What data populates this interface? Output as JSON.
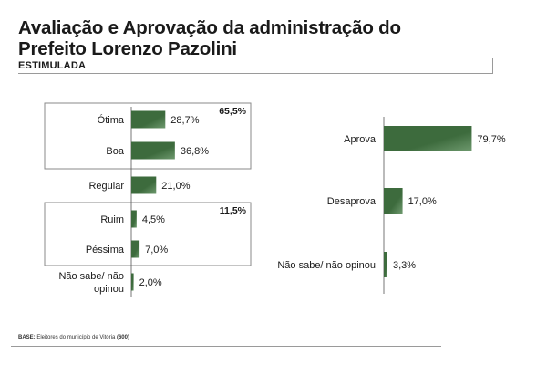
{
  "header": {
    "title": "Avaliação e Aprovação da administração do Prefeito Lorenzo Pazolini",
    "subtitle": "ESTIMULADA"
  },
  "footer": {
    "base_label": "BASE:",
    "base_text": "Eleitores do município de Vitória",
    "base_count": "(600)"
  },
  "colors": {
    "bar": "#3d6b3d",
    "bar_light": "#6f9a6f",
    "box_border": "#8a8a8a",
    "axis": "#555555"
  },
  "chart_data": [
    {
      "type": "bar",
      "orientation": "horizontal",
      "categories": [
        "Ótima",
        "Boa",
        "Regular",
        "Ruim",
        "Péssima",
        "Não sabe/ não opinou"
      ],
      "values": [
        28.7,
        36.8,
        21.0,
        4.5,
        7.0,
        2.0
      ],
      "value_labels": [
        "28,7%",
        "36,8%",
        "21,0%",
        "4,5%",
        "7,0%",
        "2,0%"
      ],
      "groups": [
        {
          "label": "65,5%",
          "members": [
            "Ótima",
            "Boa"
          ]
        },
        {
          "label": "11,5%",
          "members": [
            "Ruim",
            "Péssima"
          ]
        }
      ],
      "xlim": [
        0,
        80
      ]
    },
    {
      "type": "bar",
      "orientation": "horizontal",
      "categories": [
        "Aprova",
        "Desaprova",
        "Não sabe/ não opinou"
      ],
      "values": [
        79.7,
        17.0,
        3.3
      ],
      "value_labels": [
        "79,7%",
        "17,0%",
        "3,3%"
      ],
      "xlim": [
        0,
        80
      ]
    }
  ]
}
